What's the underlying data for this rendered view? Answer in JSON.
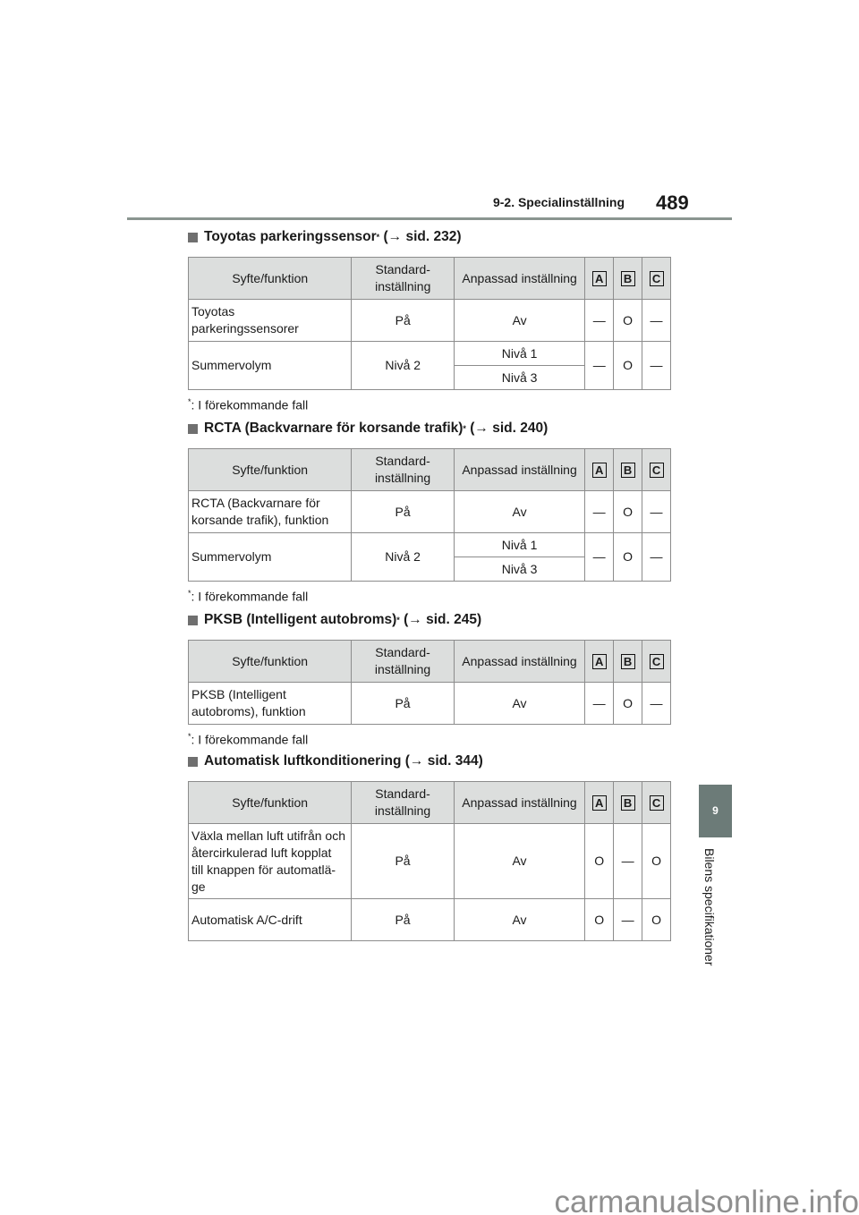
{
  "header": {
    "section": "9-2. Specialinställning",
    "page_number": "489"
  },
  "side_tab": {
    "number": "9",
    "label": "Bilens specifikationer"
  },
  "watermark": "carmanualsonline.info",
  "table_headers": {
    "purpose": "Syfte/funktion",
    "default": "Standard-\ninställning",
    "custom": "Anpassad inställning",
    "a": "A",
    "b": "B",
    "c": "C"
  },
  "sections": [
    {
      "title": "Toyotas parkeringssensor",
      "asterisk": "*",
      "ref": "(→ sid. 232)",
      "footnote_mark": "*",
      "footnote": ": I förekommande fall",
      "rows": [
        {
          "purpose": "Toyotas\nparkeringssensorer",
          "default": "På",
          "custom": [
            "Av"
          ],
          "a": "—",
          "b": "O",
          "c": "—"
        },
        {
          "purpose": "Summervolym",
          "default": "Nivå 2",
          "custom": [
            "Nivå 1",
            "Nivå 3"
          ],
          "a": "—",
          "b": "O",
          "c": "—"
        }
      ]
    },
    {
      "title": "RCTA (Backvarnare för korsande trafik)",
      "asterisk": "*",
      "ref": "(→ sid. 240)",
      "footnote_mark": "*",
      "footnote": ": I förekommande fall",
      "rows": [
        {
          "purpose": "RCTA (Backvarnare för\nkorsande trafik), funktion",
          "default": "På",
          "custom": [
            "Av"
          ],
          "a": "—",
          "b": "O",
          "c": "—"
        },
        {
          "purpose": "Summervolym",
          "default": "Nivå 2",
          "custom": [
            "Nivå 1",
            "Nivå 3"
          ],
          "a": "—",
          "b": "O",
          "c": "—"
        }
      ]
    },
    {
      "title": "PKSB (Intelligent autobroms)",
      "asterisk": "*",
      "ref": "(→ sid. 245)",
      "footnote_mark": "*",
      "footnote": ": I förekommande fall",
      "rows": [
        {
          "purpose": "PKSB (Intelligent\nautobroms), funktion",
          "default": "På",
          "custom": [
            "Av"
          ],
          "a": "—",
          "b": "O",
          "c": "—"
        }
      ]
    },
    {
      "title": "Automatisk luftkonditionering",
      "asterisk": "",
      "ref": "(→ sid. 344)",
      "rows": [
        {
          "purpose": "Växla mellan luft utifrån och\nåtercirkulerad luft kopplat\ntill knappen för automatlä-\nge",
          "default": "På",
          "custom": [
            "Av"
          ],
          "a": "O",
          "b": "—",
          "c": "O"
        },
        {
          "purpose": "Automatisk A/C-drift",
          "default": "På",
          "custom": [
            "Av"
          ],
          "a": "O",
          "b": "—",
          "c": "O",
          "short": true
        }
      ]
    }
  ]
}
